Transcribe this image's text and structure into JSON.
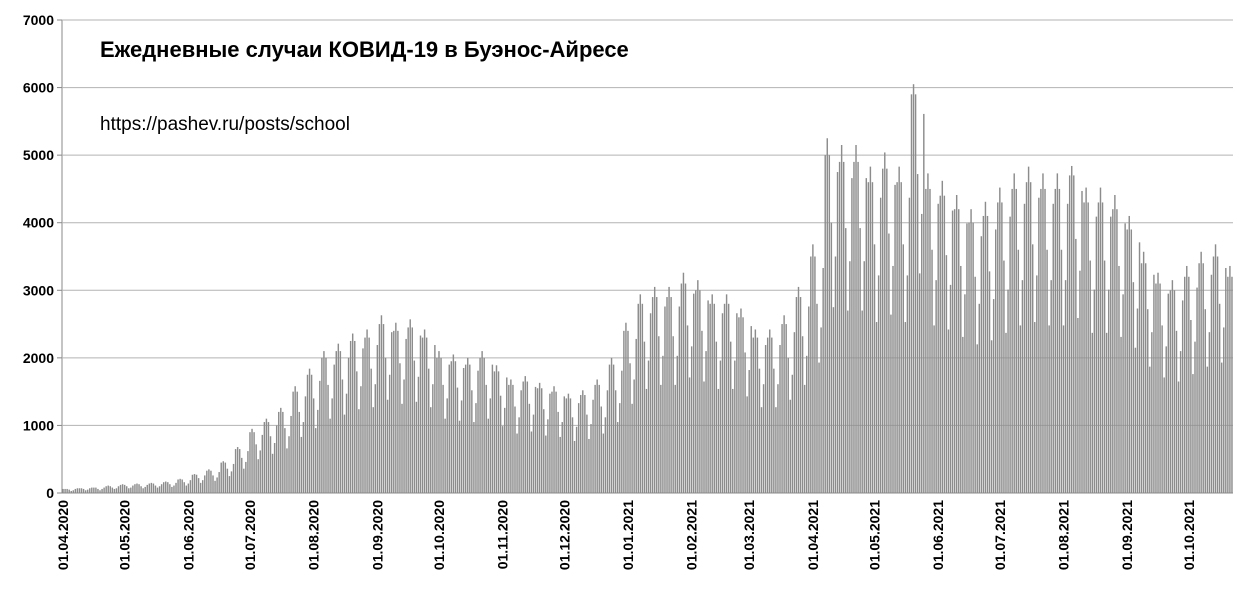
{
  "chart_data": {
    "type": "bar",
    "title": "Ежедневные случаи КОВИД-19 в Буэнос-Айресе",
    "annotation": "https://pashev.ru/posts/school",
    "color": "#8c8c8c",
    "grid": true,
    "ylim": [
      0,
      7000
    ],
    "yticks": [
      0,
      1000,
      2000,
      3000,
      4000,
      5000,
      6000,
      7000
    ],
    "categories": [
      "01.04.2020",
      null,
      null,
      null,
      null,
      null,
      null,
      null,
      null,
      null,
      null,
      null,
      null,
      null,
      null,
      null,
      null,
      null,
      null,
      null,
      null,
      null,
      null,
      null,
      null,
      null,
      null,
      null,
      null,
      null,
      "01.05.2020",
      null,
      null,
      null,
      null,
      null,
      null,
      null,
      null,
      null,
      null,
      null,
      null,
      null,
      null,
      null,
      null,
      null,
      null,
      null,
      null,
      null,
      null,
      null,
      null,
      null,
      null,
      null,
      null,
      null,
      null,
      "01.06.2020",
      null,
      null,
      null,
      null,
      null,
      null,
      null,
      null,
      null,
      null,
      null,
      null,
      null,
      null,
      null,
      null,
      null,
      null,
      null,
      null,
      null,
      null,
      null,
      null,
      null,
      null,
      null,
      null,
      null,
      "01.07.2020",
      null,
      null,
      null,
      null,
      null,
      null,
      null,
      null,
      null,
      null,
      null,
      null,
      null,
      null,
      null,
      null,
      null,
      null,
      null,
      null,
      null,
      null,
      null,
      null,
      null,
      null,
      null,
      null,
      null,
      null,
      "01.08.2020",
      null,
      null,
      null,
      null,
      null,
      null,
      null,
      null,
      null,
      null,
      null,
      null,
      null,
      null,
      null,
      null,
      null,
      null,
      null,
      null,
      null,
      null,
      null,
      null,
      null,
      null,
      null,
      null,
      null,
      null,
      "01.09.2020",
      null,
      null,
      null,
      null,
      null,
      null,
      null,
      null,
      null,
      null,
      null,
      null,
      null,
      null,
      null,
      null,
      null,
      null,
      null,
      null,
      null,
      null,
      null,
      null,
      null,
      null,
      null,
      null,
      null,
      "01.10.2020",
      null,
      null,
      null,
      null,
      null,
      null,
      null,
      null,
      null,
      null,
      null,
      null,
      null,
      null,
      null,
      null,
      null,
      null,
      null,
      null,
      null,
      null,
      null,
      null,
      null,
      null,
      null,
      null,
      null,
      null,
      "01.11.2020",
      null,
      null,
      null,
      null,
      null,
      null,
      null,
      null,
      null,
      null,
      null,
      null,
      null,
      null,
      null,
      null,
      null,
      null,
      null,
      null,
      null,
      null,
      null,
      null,
      null,
      null,
      null,
      null,
      null,
      "01.12.2020",
      null,
      null,
      null,
      null,
      null,
      null,
      null,
      null,
      null,
      null,
      null,
      null,
      null,
      null,
      null,
      null,
      null,
      null,
      null,
      null,
      null,
      null,
      null,
      null,
      null,
      null,
      null,
      null,
      null,
      null,
      "01.01.2021",
      null,
      null,
      null,
      null,
      null,
      null,
      null,
      null,
      null,
      null,
      null,
      null,
      null,
      null,
      null,
      null,
      null,
      null,
      null,
      null,
      null,
      null,
      null,
      null,
      null,
      null,
      null,
      null,
      null,
      null,
      "01.02.2021",
      null,
      null,
      null,
      null,
      null,
      null,
      null,
      null,
      null,
      null,
      null,
      null,
      null,
      null,
      null,
      null,
      null,
      null,
      null,
      null,
      null,
      null,
      null,
      null,
      null,
      null,
      null,
      "01.03.2021",
      null,
      null,
      null,
      null,
      null,
      null,
      null,
      null,
      null,
      null,
      null,
      null,
      null,
      null,
      null,
      null,
      null,
      null,
      null,
      null,
      null,
      null,
      null,
      null,
      null,
      null,
      null,
      null,
      null,
      null,
      "01.04.2021",
      null,
      null,
      null,
      null,
      null,
      null,
      null,
      null,
      null,
      null,
      null,
      null,
      null,
      null,
      null,
      null,
      null,
      null,
      null,
      null,
      null,
      null,
      null,
      null,
      null,
      null,
      null,
      null,
      null,
      "01.05.2021",
      null,
      null,
      null,
      null,
      null,
      null,
      null,
      null,
      null,
      null,
      null,
      null,
      null,
      null,
      null,
      null,
      null,
      null,
      null,
      null,
      null,
      null,
      null,
      null,
      null,
      null,
      null,
      null,
      null,
      null,
      "01.06.2021",
      null,
      null,
      null,
      null,
      null,
      null,
      null,
      null,
      null,
      null,
      null,
      null,
      null,
      null,
      null,
      null,
      null,
      null,
      null,
      null,
      null,
      null,
      null,
      null,
      null,
      null,
      null,
      null,
      null,
      "01.07.2021",
      null,
      null,
      null,
      null,
      null,
      null,
      null,
      null,
      null,
      null,
      null,
      null,
      null,
      null,
      null,
      null,
      null,
      null,
      null,
      null,
      null,
      null,
      null,
      null,
      null,
      null,
      null,
      null,
      null,
      null,
      "01.08.2021",
      null,
      null,
      null,
      null,
      null,
      null,
      null,
      null,
      null,
      null,
      null,
      null,
      null,
      null,
      null,
      null,
      null,
      null,
      null,
      null,
      null,
      null,
      null,
      null,
      null,
      null,
      null,
      null,
      null,
      null,
      "01.09.2021",
      null,
      null,
      null,
      null,
      null,
      null,
      null,
      null,
      null,
      null,
      null,
      null,
      null,
      null,
      null,
      null,
      null,
      null,
      null,
      null,
      null,
      null,
      null,
      null,
      null,
      null,
      null,
      null,
      null,
      "01.10.2021",
      null,
      null,
      null,
      null,
      null,
      null,
      null,
      null,
      null,
      null,
      null,
      null,
      null,
      null,
      null,
      null,
      null,
      null,
      null,
      null,
      null
    ],
    "values": [
      60,
      60,
      60,
      50,
      30,
      40,
      60,
      70,
      70,
      70,
      60,
      40,
      50,
      70,
      80,
      80,
      80,
      60,
      40,
      60,
      80,
      100,
      110,
      100,
      80,
      60,
      70,
      100,
      120,
      130,
      120,
      100,
      70,
      80,
      110,
      130,
      140,
      130,
      100,
      70,
      90,
      120,
      140,
      150,
      140,
      110,
      80,
      100,
      130,
      160,
      170,
      160,
      130,
      90,
      110,
      150,
      200,
      210,
      200,
      160,
      110,
      140,
      190,
      270,
      280,
      270,
      220,
      150,
      190,
      260,
      330,
      350,
      330,
      260,
      180,
      230,
      310,
      450,
      470,
      450,
      360,
      250,
      320,
      430,
      650,
      680,
      650,
      520,
      360,
      460,
      620,
      900,
      950,
      900,
      720,
      500,
      630,
      860,
      1050,
      1100,
      1050,
      840,
      580,
      740,
      1000,
      1200,
      1260,
      1200,
      960,
      660,
      840,
      1140,
      1500,
      1580,
      1500,
      1200,
      830,
      1050,
      1430,
      1750,
      1840,
      1750,
      1400,
      960,
      1230,
      1660,
      2000,
      2100,
      2000,
      1600,
      1100,
      1400,
      1900,
      2100,
      2210,
      2100,
      1680,
      1160,
      1470,
      2000,
      2250,
      2360,
      2250,
      1800,
      1240,
      1580,
      2140,
      2300,
      2420,
      2300,
      1840,
      1270,
      1610,
      2190,
      2500,
      2630,
      2500,
      2000,
      1380,
      1750,
      2380,
      2400,
      2520,
      2400,
      1920,
      1320,
      1680,
      2280,
      2450,
      2570,
      2450,
      1960,
      1350,
      1720,
      2330,
      2300,
      2420,
      2300,
      1840,
      1270,
      1610,
      2190,
      2000,
      2100,
      2000,
      1600,
      1100,
      1400,
      1900,
      1950,
      2050,
      1950,
      1560,
      1070,
      1370,
      1850,
      1900,
      2000,
      1900,
      1520,
      1050,
      1330,
      1810,
      2000,
      2100,
      2000,
      1600,
      1100,
      1400,
      1900,
      1800,
      1890,
      1800,
      1440,
      990,
      1260,
      1710,
      1600,
      1680,
      1600,
      1280,
      880,
      1120,
      1520,
      1650,
      1730,
      1650,
      1320,
      910,
      1160,
      1570,
      1550,
      1630,
      1550,
      1240,
      850,
      1090,
      1470,
      1500,
      1580,
      1500,
      1200,
      830,
      1050,
      1430,
      1400,
      1470,
      1400,
      1120,
      770,
      980,
      1330,
      1450,
      1520,
      1450,
      1160,
      800,
      1020,
      1380,
      1600,
      1680,
      1600,
      1280,
      880,
      1120,
      1520,
      1900,
      2000,
      1900,
      1520,
      1050,
      1330,
      1810,
      2400,
      2520,
      2400,
      1920,
      1320,
      1680,
      2280,
      2800,
      2940,
      2800,
      2240,
      1540,
      1960,
      2660,
      2900,
      3050,
      2900,
      2320,
      1600,
      2030,
      2760,
      2900,
      3050,
      2900,
      2320,
      1600,
      2030,
      2760,
      3100,
      3260,
      3100,
      2480,
      1710,
      2170,
      2950,
      3000,
      3150,
      3000,
      2400,
      1650,
      2100,
      2850,
      2800,
      2940,
      2800,
      2240,
      1540,
      1960,
      2660,
      2800,
      2940,
      2800,
      2240,
      1540,
      1960,
      2660,
      2600,
      2730,
      2600,
      2080,
      1430,
      1820,
      2470,
      2300,
      2420,
      2300,
      1840,
      1270,
      1610,
      2190,
      2300,
      2420,
      2300,
      1840,
      1270,
      1610,
      2190,
      2500,
      2630,
      2500,
      2000,
      1380,
      1750,
      2380,
      2900,
      3050,
      2900,
      2320,
      1600,
      2030,
      2760,
      3500,
      3680,
      3500,
      2800,
      1930,
      2450,
      3330,
      5000,
      5250,
      5000,
      4000,
      2750,
      3500,
      4750,
      4900,
      5150,
      4900,
      3920,
      2700,
      3430,
      4660,
      4900,
      5150,
      4900,
      3920,
      2700,
      3430,
      4660,
      4600,
      4830,
      4600,
      3680,
      2530,
      3220,
      4370,
      4800,
      5040,
      4800,
      3840,
      2640,
      3360,
      4560,
      4600,
      4830,
      4600,
      3680,
      2530,
      3220,
      4370,
      5900,
      6050,
      5900,
      4720,
      3250,
      4130,
      5610,
      4500,
      4730,
      4500,
      3600,
      2480,
      3150,
      4280,
      4400,
      4620,
      4400,
      3520,
      2420,
      3080,
      4180,
      4200,
      4410,
      4200,
      3360,
      2310,
      2940,
      3990,
      4000,
      4200,
      4000,
      3200,
      2200,
      2800,
      3800,
      4100,
      4310,
      4100,
      3280,
      2260,
      2870,
      3900,
      4300,
      4520,
      4300,
      3440,
      2370,
      3010,
      4090,
      4500,
      4730,
      4500,
      3600,
      2480,
      3150,
      4280,
      4600,
      4830,
      4600,
      3680,
      2530,
      3220,
      4370,
      4500,
      4730,
      4500,
      3600,
      2480,
      3150,
      4280,
      4500,
      4730,
      4500,
      3600,
      2480,
      3150,
      4280,
      4700,
      4840,
      4700,
      3760,
      2590,
      3290,
      4470,
      4300,
      4520,
      4300,
      3440,
      2370,
      3010,
      4090,
      4300,
      4520,
      4300,
      3440,
      2370,
      3010,
      4090,
      4200,
      4410,
      4200,
      3360,
      2310,
      2940,
      3990,
      3900,
      4100,
      3900,
      3120,
      2150,
      2730,
      3710,
      3400,
      3570,
      3400,
      2720,
      1870,
      2380,
      3230,
      3100,
      3260,
      3100,
      2480,
      1710,
      2170,
      2950,
      3000,
      3150,
      3000,
      2400,
      1650,
      2100,
      2850,
      3200,
      3360,
      3200,
      2560,
      1760,
      2240,
      3040,
      3400,
      3570,
      3400,
      2720,
      1870,
      2380,
      3230,
      3500,
      3680,
      3500,
      2800,
      1930,
      2450,
      3330,
      3200,
      3360,
      3200
    ]
  }
}
